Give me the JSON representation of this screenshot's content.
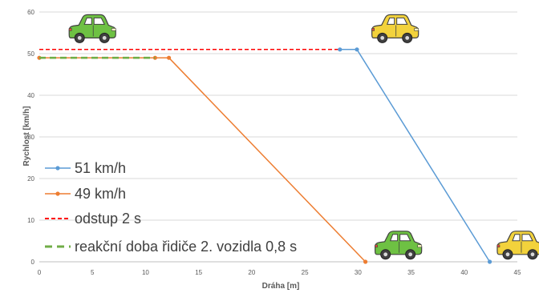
{
  "chart_data": {
    "type": "line",
    "xlabel": "Dráha [m]",
    "ylabel": "Rychlost  [km/h]",
    "xlim": [
      0,
      45
    ],
    "ylim": [
      0,
      60
    ],
    "x_ticks": [
      "0",
      "5",
      "10",
      "15",
      "20",
      "25",
      "30",
      "35",
      "40",
      "45"
    ],
    "y_ticks": [
      "0",
      "10",
      "20",
      "30",
      "40",
      "50",
      "60"
    ],
    "grid": "horizontal",
    "legend_position": "left-bottom, inside plot",
    "series": [
      {
        "name": "51 km/h",
        "color": "#5B9BD5",
        "style": "solid-markers",
        "points": [
          [
            28.3,
            51
          ],
          [
            29.9,
            51
          ],
          [
            42.4,
            0
          ]
        ]
      },
      {
        "name": "49 km/h",
        "color": "#ED7D31",
        "style": "solid-markers",
        "points": [
          [
            0,
            49
          ],
          [
            10.9,
            49
          ],
          [
            12.2,
            49
          ],
          [
            30.7,
            0
          ]
        ]
      },
      {
        "name": "odstup 2 s",
        "color": "#FF0000",
        "style": "dashed",
        "points": [
          [
            0,
            51
          ],
          [
            29.9,
            51
          ]
        ]
      },
      {
        "name": "reakční doba řidiče 2. vozidla 0,8 s",
        "color": "#70AD47",
        "style": "dashed-thick",
        "points": [
          [
            0,
            49
          ],
          [
            10.9,
            49
          ]
        ]
      }
    ],
    "cars": [
      {
        "name": "green-car-start",
        "color": "#6EC143",
        "x": 5,
        "y": 55.5
      },
      {
        "name": "yellow-car-start",
        "color": "#F2D23C",
        "x": 33.5,
        "y": 55.5
      },
      {
        "name": "green-car-stop",
        "color": "#6EC143",
        "x": 33.8,
        "y": 3.5
      },
      {
        "name": "yellow-car-stop",
        "color": "#F2D23C",
        "x": 45.3,
        "y": 3.5
      }
    ]
  }
}
